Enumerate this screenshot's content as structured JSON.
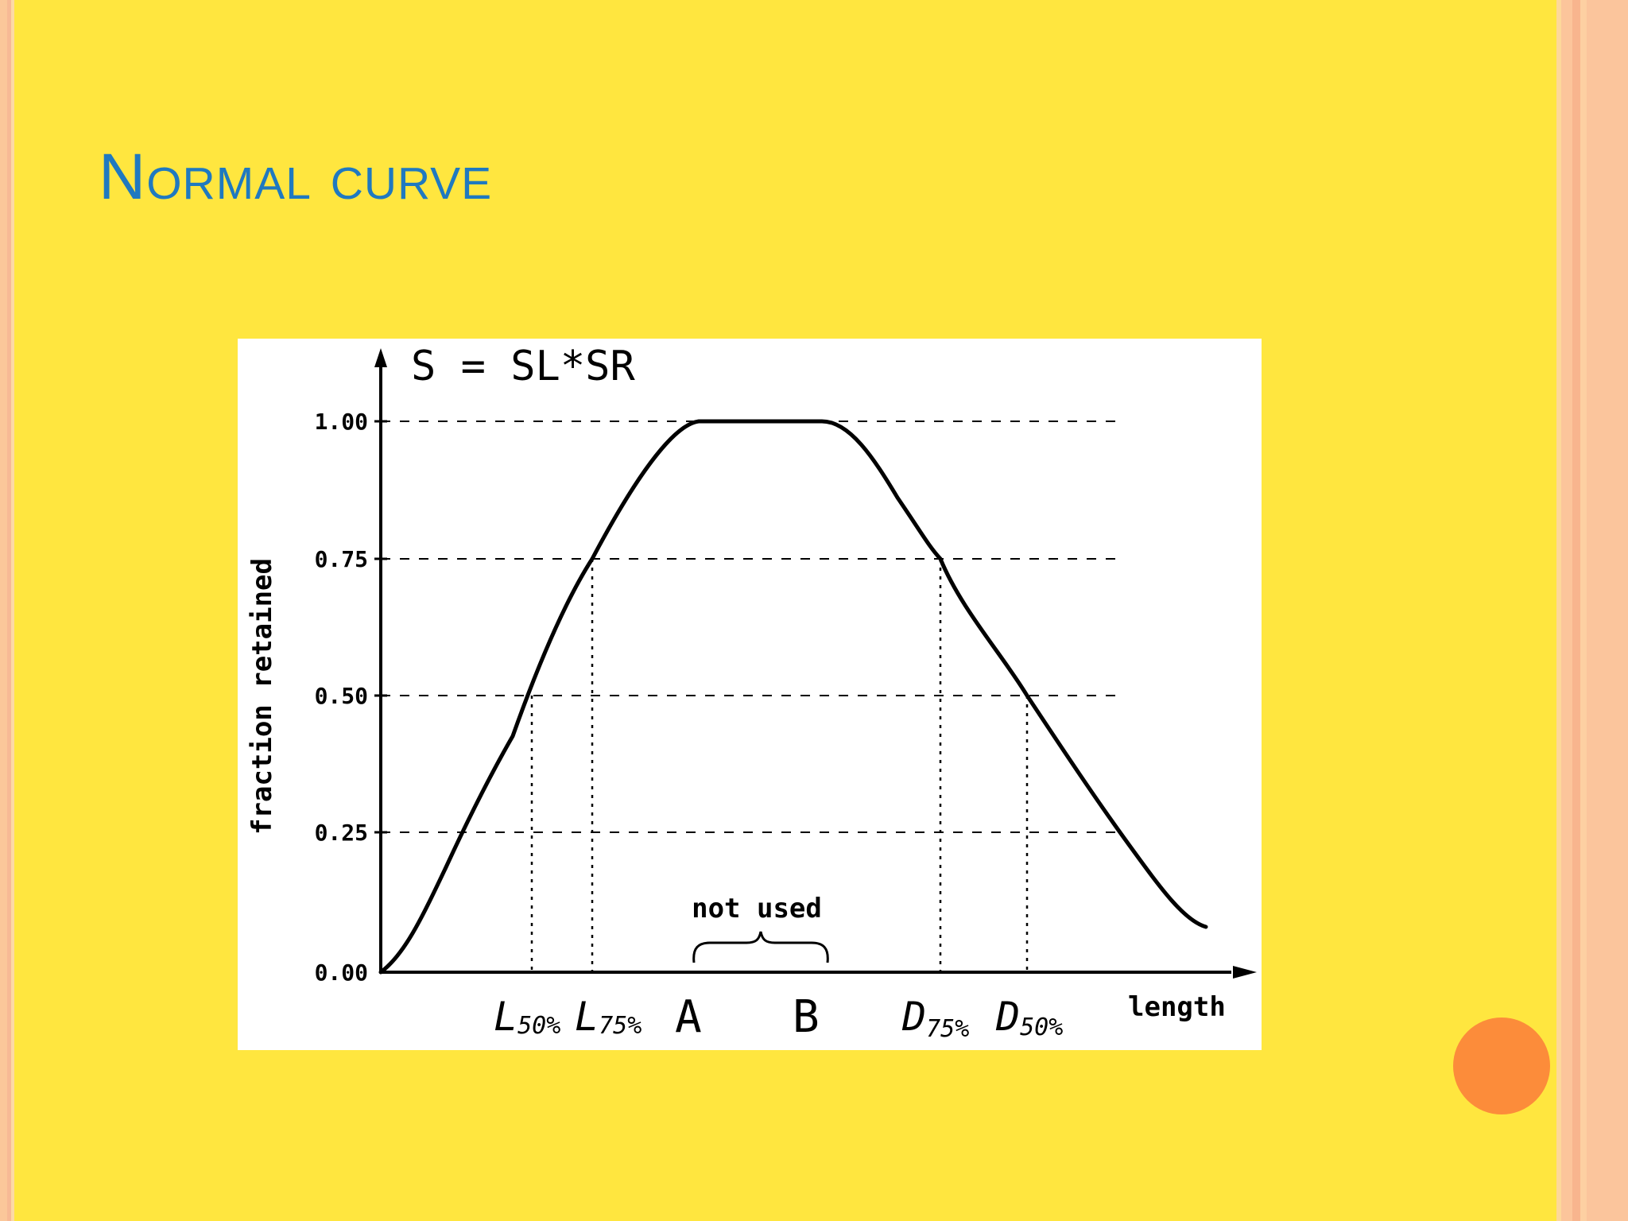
{
  "slide": {
    "title": "Normal curve",
    "colors": {
      "background": "#FFE63F",
      "title": "#1F79C0",
      "accent_dot": "#FC8C3A",
      "figure_background": "#FFFFFF",
      "ink": "#000000"
    }
  },
  "figure": {
    "formula": "S = SL*SR",
    "ylabel": "fraction retained",
    "xlabel": "length",
    "y_ticks": [
      "1.00",
      "0.75",
      "0.50",
      "0.25",
      "0.00"
    ],
    "x_markers": [
      {
        "main": "L",
        "sub": "50%"
      },
      {
        "main": "L",
        "sub": "75%"
      },
      {
        "main": "A",
        "sub": ""
      },
      {
        "main": "B",
        "sub": ""
      },
      {
        "main": "D",
        "sub": "75%"
      },
      {
        "main": "D",
        "sub": "50%"
      }
    ],
    "brace_label": "not used"
  }
}
